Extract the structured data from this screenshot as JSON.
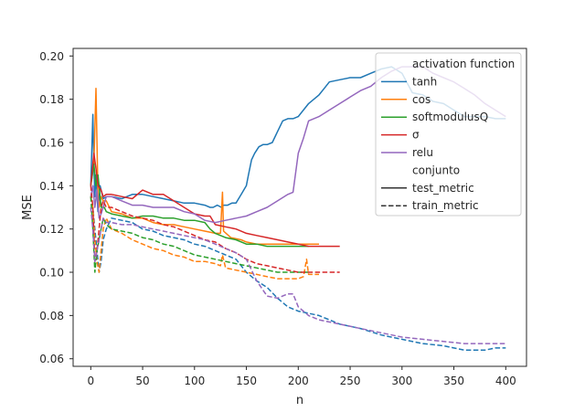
{
  "chart_data": {
    "type": "line",
    "title": "",
    "xlabel": "n",
    "ylabel": "MSE",
    "xlim": [
      -17,
      420
    ],
    "ylim": [
      0.0565,
      0.2035
    ],
    "xticks": [
      0,
      50,
      100,
      150,
      200,
      250,
      300,
      350,
      400
    ],
    "yticks": [
      0.06,
      0.08,
      0.1,
      0.12,
      0.14,
      0.16,
      0.18,
      0.2
    ],
    "ytick_labels": [
      "0.06",
      "0.08",
      "0.10",
      "0.12",
      "0.14",
      "0.16",
      "0.18",
      "0.20"
    ],
    "grid": false,
    "legend_placement": "top-right",
    "legend": {
      "hue_title": "activation function",
      "style_title": "conjunto",
      "styles": [
        {
          "name": "test_metric",
          "dash": "solid"
        },
        {
          "name": "train_metric",
          "dash": "dashed"
        }
      ]
    },
    "series": [
      {
        "name": "tanh",
        "metric": "test_metric",
        "color": "#1f77b4",
        "dash": "solid",
        "x": [
          0,
          2,
          3,
          4,
          5,
          7,
          9,
          12,
          15,
          20,
          30,
          40,
          50,
          60,
          70,
          80,
          90,
          100,
          110,
          115,
          118,
          122,
          126,
          128,
          132,
          136,
          140,
          145,
          150,
          152,
          155,
          158,
          162,
          166,
          170,
          175,
          180,
          185,
          190,
          195,
          200,
          210,
          220,
          225,
          230,
          240,
          250,
          260,
          270,
          280,
          290,
          300,
          310,
          320,
          330,
          340,
          350,
          360,
          370,
          380,
          390,
          400
        ],
        "y": [
          0.14,
          0.173,
          0.15,
          0.135,
          0.145,
          0.128,
          0.14,
          0.134,
          0.135,
          0.135,
          0.134,
          0.136,
          0.136,
          0.135,
          0.134,
          0.133,
          0.132,
          0.132,
          0.131,
          0.13,
          0.13,
          0.131,
          0.13,
          0.131,
          0.131,
          0.132,
          0.132,
          0.136,
          0.14,
          0.145,
          0.152,
          0.155,
          0.158,
          0.159,
          0.159,
          0.16,
          0.165,
          0.17,
          0.171,
          0.171,
          0.172,
          0.178,
          0.182,
          0.185,
          0.188,
          0.189,
          0.19,
          0.19,
          0.192,
          0.194,
          0.195,
          0.192,
          0.183,
          0.182,
          0.179,
          0.178,
          0.175,
          0.172,
          0.172,
          0.172,
          0.171,
          0.171
        ]
      },
      {
        "name": "cos",
        "metric": "test_metric",
        "color": "#ff7f0e",
        "dash": "solid",
        "x": [
          0,
          3,
          5,
          6,
          7,
          8,
          10,
          12,
          15,
          20,
          30,
          40,
          50,
          60,
          70,
          80,
          90,
          100,
          110,
          120,
          125,
          127,
          128,
          135,
          145,
          150,
          160,
          170,
          180,
          190,
          200,
          210,
          220
        ],
        "y": [
          0.14,
          0.15,
          0.185,
          0.16,
          0.135,
          0.13,
          0.135,
          0.133,
          0.133,
          0.128,
          0.127,
          0.125,
          0.125,
          0.123,
          0.122,
          0.122,
          0.121,
          0.12,
          0.119,
          0.118,
          0.118,
          0.137,
          0.119,
          0.116,
          0.115,
          0.114,
          0.113,
          0.113,
          0.113,
          0.113,
          0.113,
          0.113,
          0.113
        ]
      },
      {
        "name": "softmodulusQ",
        "metric": "test_metric",
        "color": "#2ca02c",
        "dash": "solid",
        "x": [
          0,
          3,
          5,
          7,
          10,
          13,
          15,
          20,
          30,
          40,
          50,
          60,
          70,
          80,
          90,
          100,
          110,
          115,
          120,
          130,
          140,
          150,
          160,
          170,
          180,
          190,
          200,
          210
        ],
        "y": [
          0.14,
          0.15,
          0.14,
          0.145,
          0.13,
          0.13,
          0.128,
          0.127,
          0.126,
          0.125,
          0.126,
          0.126,
          0.125,
          0.125,
          0.124,
          0.124,
          0.123,
          0.12,
          0.118,
          0.116,
          0.115,
          0.113,
          0.113,
          0.112,
          0.112,
          0.112,
          0.112,
          0.112
        ]
      },
      {
        "name": "σ",
        "metric": "test_metric",
        "color": "#d62728",
        "dash": "solid",
        "x": [
          0,
          3,
          5,
          7,
          10,
          12,
          15,
          20,
          30,
          40,
          50,
          60,
          70,
          80,
          90,
          100,
          110,
          115,
          120,
          130,
          140,
          150,
          160,
          170,
          180,
          190,
          200,
          210,
          220,
          230,
          240
        ],
        "y": [
          0.14,
          0.155,
          0.148,
          0.14,
          0.138,
          0.135,
          0.136,
          0.136,
          0.135,
          0.134,
          0.138,
          0.136,
          0.136,
          0.133,
          0.13,
          0.127,
          0.126,
          0.126,
          0.122,
          0.121,
          0.12,
          0.118,
          0.117,
          0.116,
          0.115,
          0.114,
          0.113,
          0.112,
          0.112,
          0.112,
          0.112
        ]
      },
      {
        "name": "relu",
        "metric": "test_metric",
        "color": "#9467bd",
        "dash": "solid",
        "x": [
          0,
          2,
          4,
          6,
          8,
          10,
          12,
          15,
          20,
          30,
          40,
          50,
          60,
          70,
          80,
          90,
          100,
          110,
          120,
          130,
          140,
          150,
          160,
          170,
          180,
          190,
          195,
          200,
          205,
          210,
          220,
          230,
          240,
          250,
          260,
          270,
          280,
          290,
          300,
          310,
          320,
          330,
          340,
          350,
          360,
          370,
          380,
          390,
          400
        ],
        "y": [
          0.135,
          0.14,
          0.13,
          0.138,
          0.125,
          0.127,
          0.13,
          0.135,
          0.135,
          0.133,
          0.131,
          0.131,
          0.13,
          0.13,
          0.13,
          0.128,
          0.127,
          0.124,
          0.123,
          0.124,
          0.125,
          0.126,
          0.128,
          0.13,
          0.133,
          0.136,
          0.137,
          0.155,
          0.162,
          0.17,
          0.172,
          0.175,
          0.178,
          0.181,
          0.184,
          0.186,
          0.19,
          0.193,
          0.195,
          0.195,
          0.195,
          0.192,
          0.19,
          0.188,
          0.185,
          0.182,
          0.178,
          0.175,
          0.172
        ]
      },
      {
        "name": "tanh",
        "metric": "train_metric",
        "color": "#1f77b4",
        "dash": "dashed",
        "x": [
          0,
          2,
          4,
          6,
          8,
          10,
          12,
          15,
          20,
          30,
          40,
          50,
          60,
          70,
          80,
          90,
          100,
          110,
          120,
          130,
          140,
          150,
          160,
          170,
          180,
          190,
          200,
          220,
          240,
          260,
          280,
          300,
          320,
          340,
          350,
          360,
          370,
          380,
          390,
          400
        ],
        "y": [
          0.135,
          0.13,
          0.12,
          0.11,
          0.1,
          0.105,
          0.115,
          0.12,
          0.125,
          0.124,
          0.123,
          0.12,
          0.119,
          0.117,
          0.116,
          0.115,
          0.113,
          0.112,
          0.11,
          0.108,
          0.106,
          0.1,
          0.096,
          0.093,
          0.088,
          0.084,
          0.082,
          0.08,
          0.076,
          0.074,
          0.071,
          0.069,
          0.067,
          0.066,
          0.065,
          0.064,
          0.064,
          0.064,
          0.065,
          0.065
        ]
      },
      {
        "name": "cos",
        "metric": "train_metric",
        "color": "#ff7f0e",
        "dash": "dashed",
        "x": [
          0,
          2,
          4,
          6,
          8,
          10,
          12,
          15,
          20,
          30,
          40,
          50,
          60,
          70,
          80,
          90,
          100,
          110,
          120,
          125,
          127,
          130,
          140,
          150,
          160,
          170,
          180,
          190,
          200,
          205,
          208,
          210,
          215,
          220
        ],
        "y": [
          0.135,
          0.13,
          0.115,
          0.105,
          0.1,
          0.11,
          0.12,
          0.125,
          0.12,
          0.118,
          0.115,
          0.113,
          0.111,
          0.11,
          0.108,
          0.107,
          0.105,
          0.105,
          0.104,
          0.103,
          0.108,
          0.102,
          0.101,
          0.1,
          0.099,
          0.098,
          0.097,
          0.097,
          0.097,
          0.098,
          0.106,
          0.099,
          0.099,
          0.099
        ]
      },
      {
        "name": "softmodulusQ",
        "metric": "train_metric",
        "color": "#2ca02c",
        "dash": "dashed",
        "x": [
          0,
          2,
          4,
          6,
          8,
          10,
          12,
          15,
          20,
          30,
          40,
          50,
          60,
          70,
          80,
          90,
          100,
          110,
          120,
          130,
          140,
          150,
          160,
          170,
          180,
          190,
          200,
          210
        ],
        "y": [
          0.135,
          0.12,
          0.1,
          0.11,
          0.115,
          0.12,
          0.125,
          0.122,
          0.12,
          0.119,
          0.118,
          0.116,
          0.115,
          0.113,
          0.112,
          0.11,
          0.108,
          0.107,
          0.106,
          0.105,
          0.104,
          0.103,
          0.102,
          0.101,
          0.1,
          0.1,
          0.1,
          0.1
        ]
      },
      {
        "name": "σ",
        "metric": "train_metric",
        "color": "#d62728",
        "dash": "dashed",
        "x": [
          0,
          2,
          4,
          6,
          8,
          10,
          12,
          15,
          20,
          30,
          40,
          50,
          60,
          70,
          80,
          90,
          100,
          110,
          120,
          130,
          140,
          150,
          160,
          170,
          180,
          190,
          200,
          210,
          220,
          230,
          240
        ],
        "y": [
          0.14,
          0.13,
          0.105,
          0.11,
          0.12,
          0.13,
          0.133,
          0.13,
          0.13,
          0.128,
          0.126,
          0.125,
          0.124,
          0.122,
          0.121,
          0.119,
          0.117,
          0.115,
          0.114,
          0.111,
          0.109,
          0.106,
          0.104,
          0.103,
          0.102,
          0.101,
          0.1,
          0.1,
          0.1,
          0.1,
          0.1
        ]
      },
      {
        "name": "relu",
        "metric": "train_metric",
        "color": "#9467bd",
        "dash": "dashed",
        "x": [
          0,
          2,
          4,
          6,
          8,
          10,
          12,
          15,
          20,
          30,
          40,
          50,
          60,
          70,
          80,
          90,
          100,
          110,
          120,
          130,
          140,
          150,
          160,
          170,
          180,
          190,
          195,
          200,
          210,
          220,
          240,
          260,
          280,
          300,
          320,
          340,
          360,
          380,
          400
        ],
        "y": [
          0.13,
          0.12,
          0.105,
          0.11,
          0.115,
          0.12,
          0.125,
          0.123,
          0.123,
          0.122,
          0.122,
          0.121,
          0.12,
          0.119,
          0.118,
          0.117,
          0.116,
          0.115,
          0.113,
          0.111,
          0.109,
          0.106,
          0.096,
          0.089,
          0.088,
          0.09,
          0.09,
          0.084,
          0.08,
          0.078,
          0.076,
          0.074,
          0.072,
          0.07,
          0.069,
          0.068,
          0.067,
          0.067,
          0.067
        ]
      }
    ]
  }
}
